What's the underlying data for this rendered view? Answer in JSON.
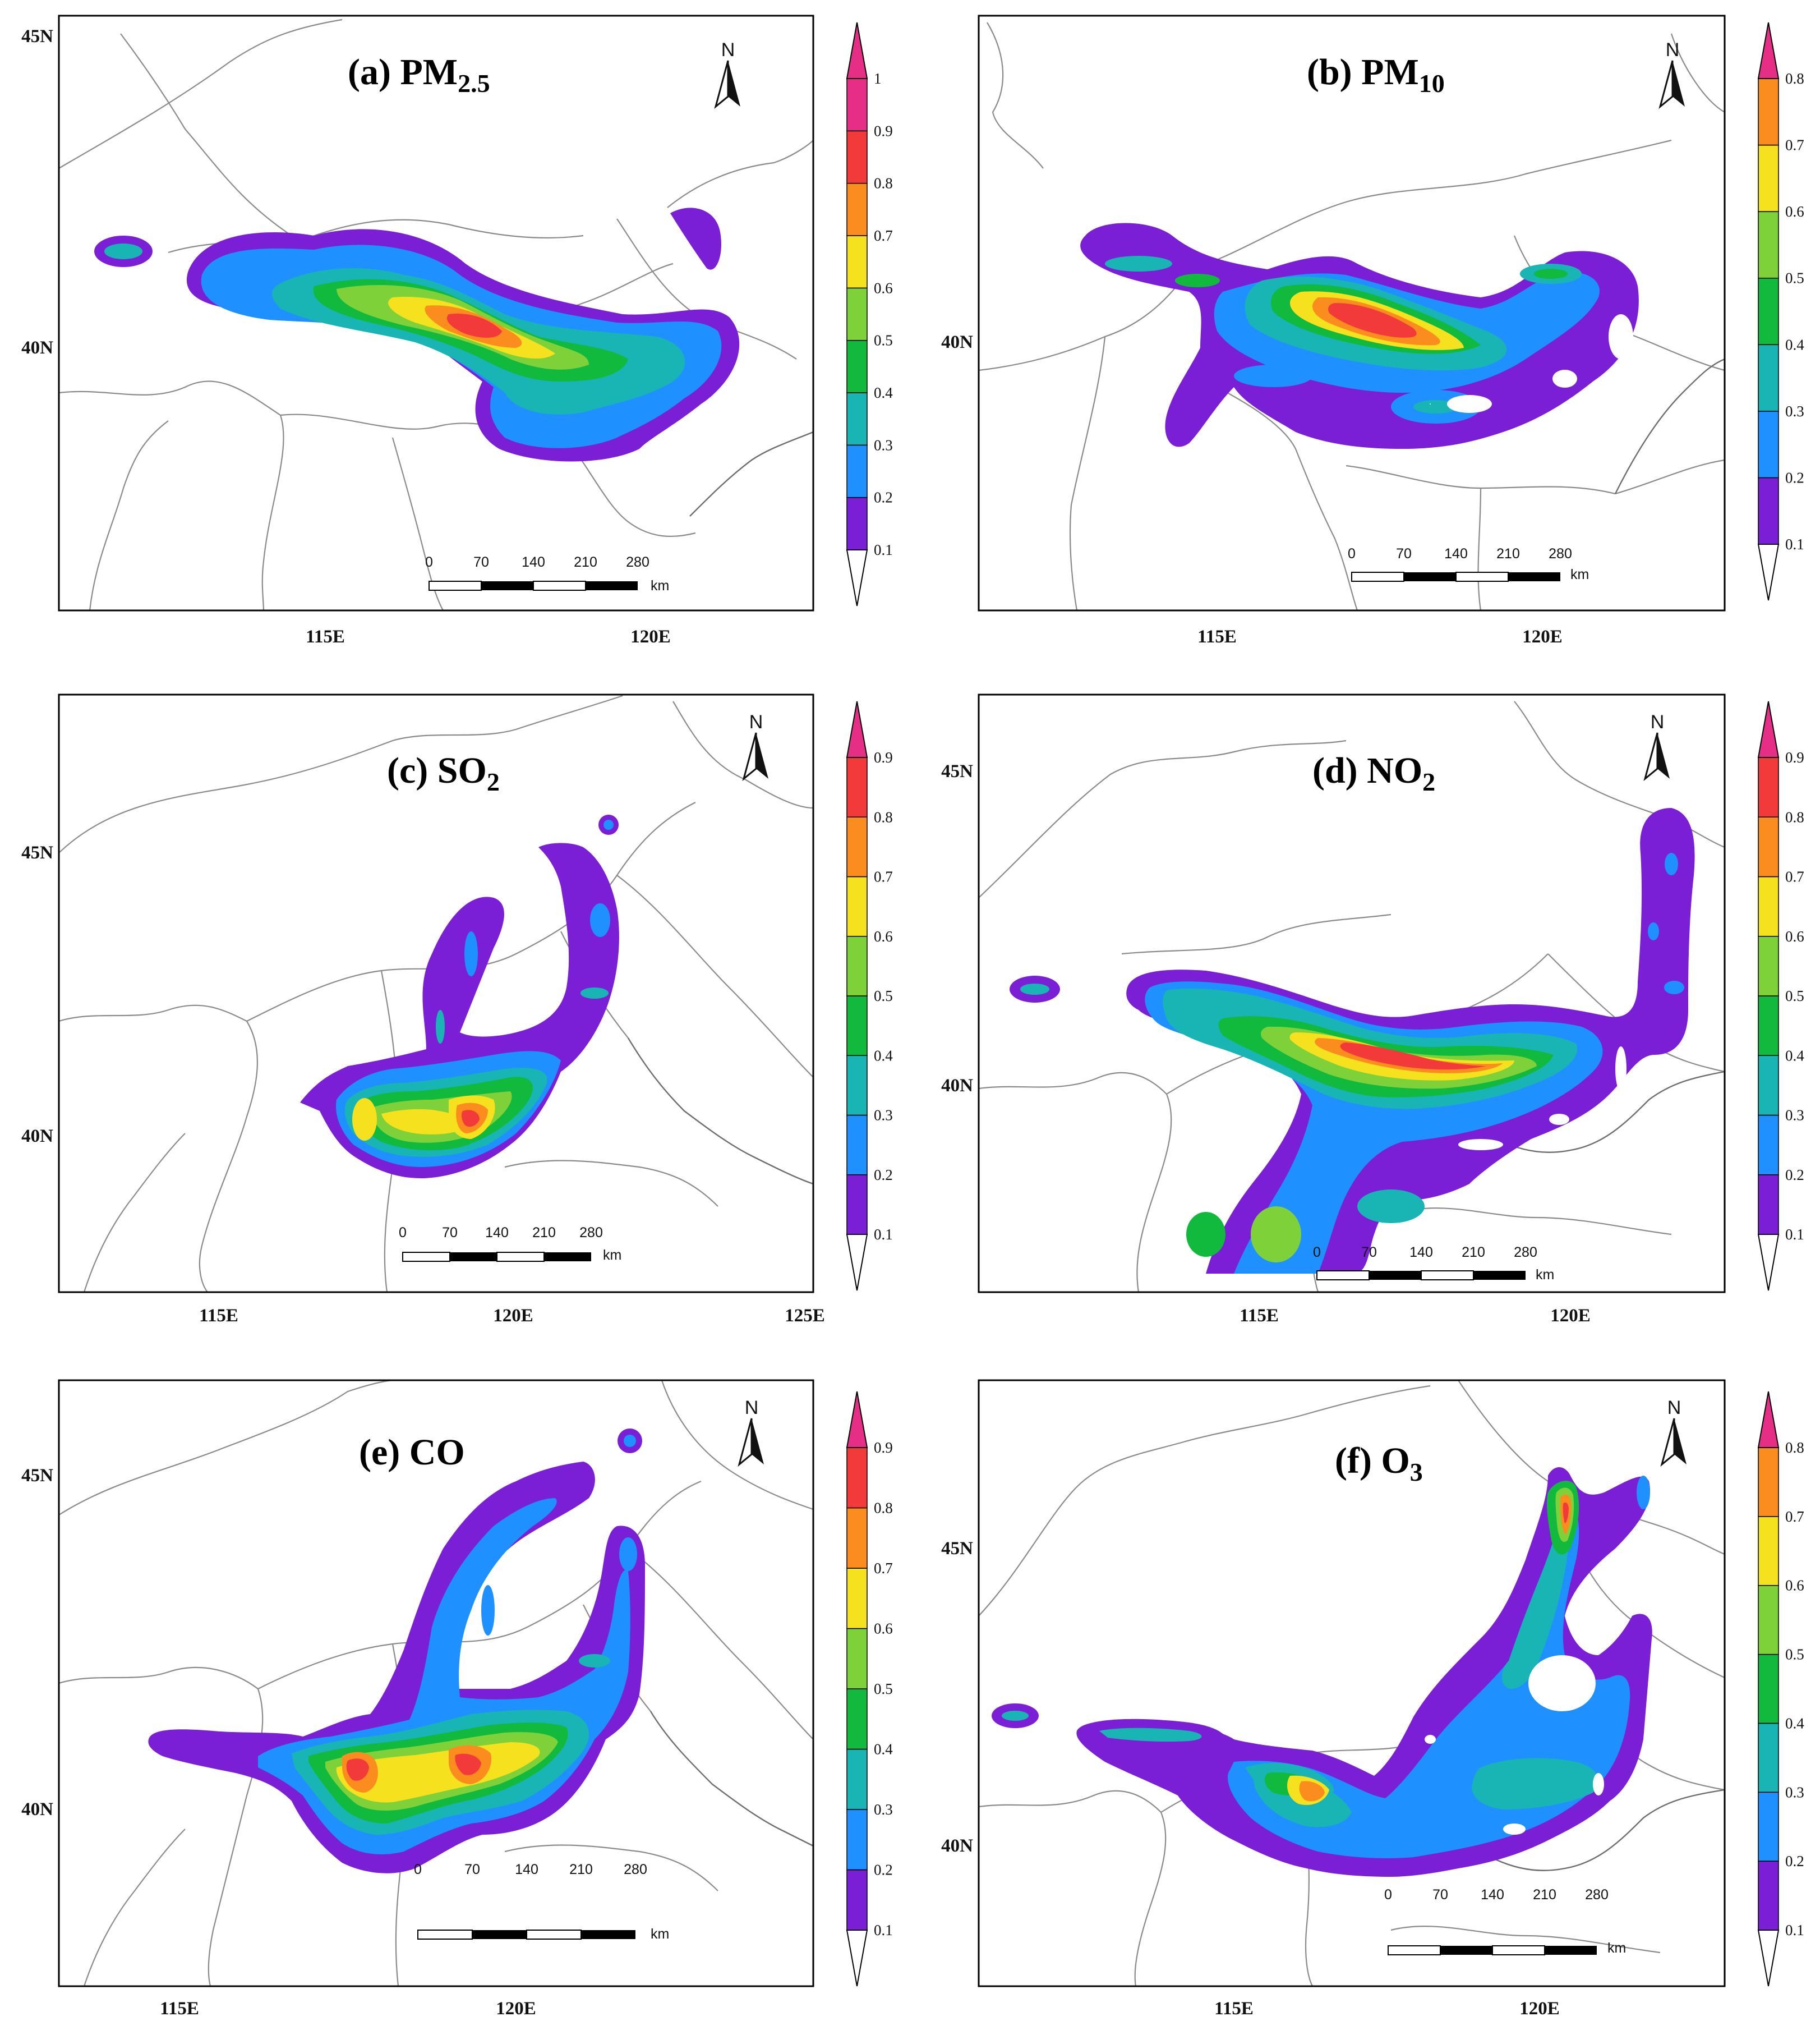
{
  "figure": {
    "panels": [
      {
        "id": "a",
        "letter": "(a)",
        "pollutant": "PM",
        "subscript": "2.5",
        "lat_labels": [
          "45N",
          "40N"
        ],
        "lon_labels": [
          "115E",
          "120E"
        ],
        "colorbar": {
          "labels": [
            "0.1",
            "0.2",
            "0.3",
            "0.4",
            "0.5",
            "0.6",
            "0.7",
            "0.8",
            "0.9",
            "1"
          ]
        },
        "north": "N",
        "scalebar": {
          "labels": [
            "0",
            "70",
            "140",
            "210",
            "280"
          ],
          "unit": "km"
        }
      },
      {
        "id": "b",
        "letter": "(b)",
        "pollutant": "PM",
        "subscript": "10",
        "lat_labels": [
          "40N"
        ],
        "lon_labels": [
          "115E",
          "120E"
        ],
        "colorbar": {
          "labels": [
            "0.1",
            "0.2",
            "0.3",
            "0.4",
            "0.5",
            "0.6",
            "0.7",
            "0.8"
          ]
        },
        "north": "N",
        "scalebar": {
          "labels": [
            "0",
            "70",
            "140",
            "210",
            "280"
          ],
          "unit": "km"
        }
      },
      {
        "id": "c",
        "letter": "(c)",
        "pollutant": "SO",
        "subscript": "2",
        "lat_labels": [
          "45N",
          "40N"
        ],
        "lon_labels": [
          "115E",
          "120E",
          "125E"
        ],
        "colorbar": {
          "labels": [
            "0.1",
            "0.2",
            "0.3",
            "0.4",
            "0.5",
            "0.6",
            "0.7",
            "0.8",
            "0.9"
          ]
        },
        "north": "N",
        "scalebar": {
          "labels": [
            "0",
            "70",
            "140",
            "210",
            "280"
          ],
          "unit": "km"
        }
      },
      {
        "id": "d",
        "letter": "(d)",
        "pollutant": "NO",
        "subscript": "2",
        "lat_labels": [
          "45N",
          "40N"
        ],
        "lon_labels": [
          "115E",
          "120E"
        ],
        "colorbar": {
          "labels": [
            "0.1",
            "0.2",
            "0.3",
            "0.4",
            "0.5",
            "0.6",
            "0.7",
            "0.8",
            "0.9"
          ]
        },
        "north": "N",
        "scalebar": {
          "labels": [
            "0",
            "70",
            "140",
            "210",
            "280"
          ],
          "unit": "km"
        }
      },
      {
        "id": "e",
        "letter": "(e)",
        "pollutant": "CO",
        "subscript": "",
        "lat_labels": [
          "45N",
          "40N"
        ],
        "lon_labels": [
          "115E",
          "120E"
        ],
        "colorbar": {
          "labels": [
            "0.1",
            "0.2",
            "0.3",
            "0.4",
            "0.5",
            "0.6",
            "0.7",
            "0.8",
            "0.9"
          ]
        },
        "north": "N",
        "scalebar": {
          "labels": [
            "0",
            "70",
            "140",
            "210",
            "280"
          ],
          "unit": "km"
        }
      },
      {
        "id": "f",
        "letter": "(f)",
        "pollutant": "O",
        "subscript": "3",
        "lat_labels": [
          "45N",
          "40N"
        ],
        "lon_labels": [
          "115E",
          "120E"
        ],
        "colorbar": {
          "labels": [
            "0.1",
            "0.2",
            "0.3",
            "0.4",
            "0.5",
            "0.6",
            "0.7",
            "0.8"
          ]
        },
        "north": "N",
        "scalebar": {
          "labels": [
            "0",
            "70",
            "140",
            "210",
            "280"
          ],
          "unit": "km"
        }
      }
    ],
    "palette": {
      "levels": [
        "#7b1fd6",
        "#1e90ff",
        "#19b5b5",
        "#11b93d",
        "#7fd13a",
        "#f5e11e",
        "#fb8c1e",
        "#f23a3a",
        "#e62e86"
      ],
      "border": "#000000",
      "boundary": "#8a8a8a",
      "background": "#ffffff"
    }
  }
}
